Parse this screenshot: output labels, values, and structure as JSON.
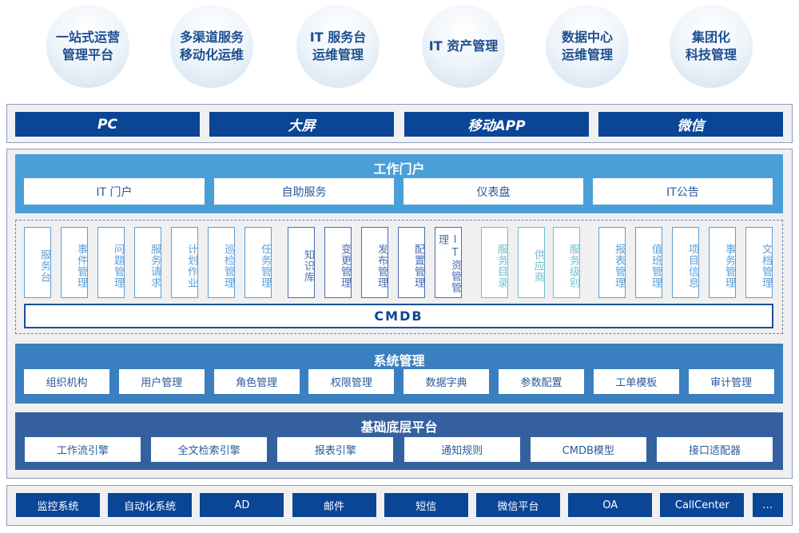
{
  "scenarios": [
    "一站式运营\n管理平台",
    "多渠道服务\n移动化运维",
    "IT 服务台\n运维管理",
    "IT 资产管理",
    "数据中心\n运维管理",
    "集团化\n科技管理"
  ],
  "channels": [
    "PC",
    "大屏",
    "移动APP",
    "微信"
  ],
  "portal": {
    "title": "工作门户",
    "items": [
      "IT 门户",
      "自助服务",
      "仪表盘",
      "IT公告"
    ]
  },
  "modules": {
    "group1": [
      "服务台",
      "事件管理",
      "问题管理",
      "服务请求",
      "计划作业",
      "巡检管理",
      "任务管理"
    ],
    "group2": [
      "知识库",
      "变更管理",
      "发布管理",
      "配置管理",
      "IT资管管理"
    ],
    "group3": [
      "服务目录",
      "供应商",
      "服务级别"
    ],
    "group4": [
      "报表管理",
      "值班管理",
      "项目信息",
      "事务管理",
      "文档管理"
    ],
    "cmdb": "CMDB"
  },
  "system": {
    "title": "系统管理",
    "items": [
      "组织机构",
      "用户管理",
      "角色管理",
      "权限管理",
      "数据字典",
      "参数配置",
      "工单模板",
      "审计管理"
    ]
  },
  "base": {
    "title": "基础底层平台",
    "items": [
      "工作流引擎",
      "全文检索引擎",
      "报表引擎",
      "通知规则",
      "CMDB模型",
      "接口适配器"
    ]
  },
  "integrations": [
    "监控系统",
    "自动化系统",
    "AD",
    "邮件",
    "短信",
    "微信平台",
    "OA",
    "CallCenter",
    "…"
  ],
  "colors": {
    "dark_blue": "#0a4596",
    "portal": "#4a9fd8",
    "system": "#3a7fc0",
    "base": "#3460a0",
    "group1": "#5a9fd8",
    "group2": "#4a6faf",
    "group3": "#6cc0d0",
    "group4": "#5a9fd8"
  }
}
